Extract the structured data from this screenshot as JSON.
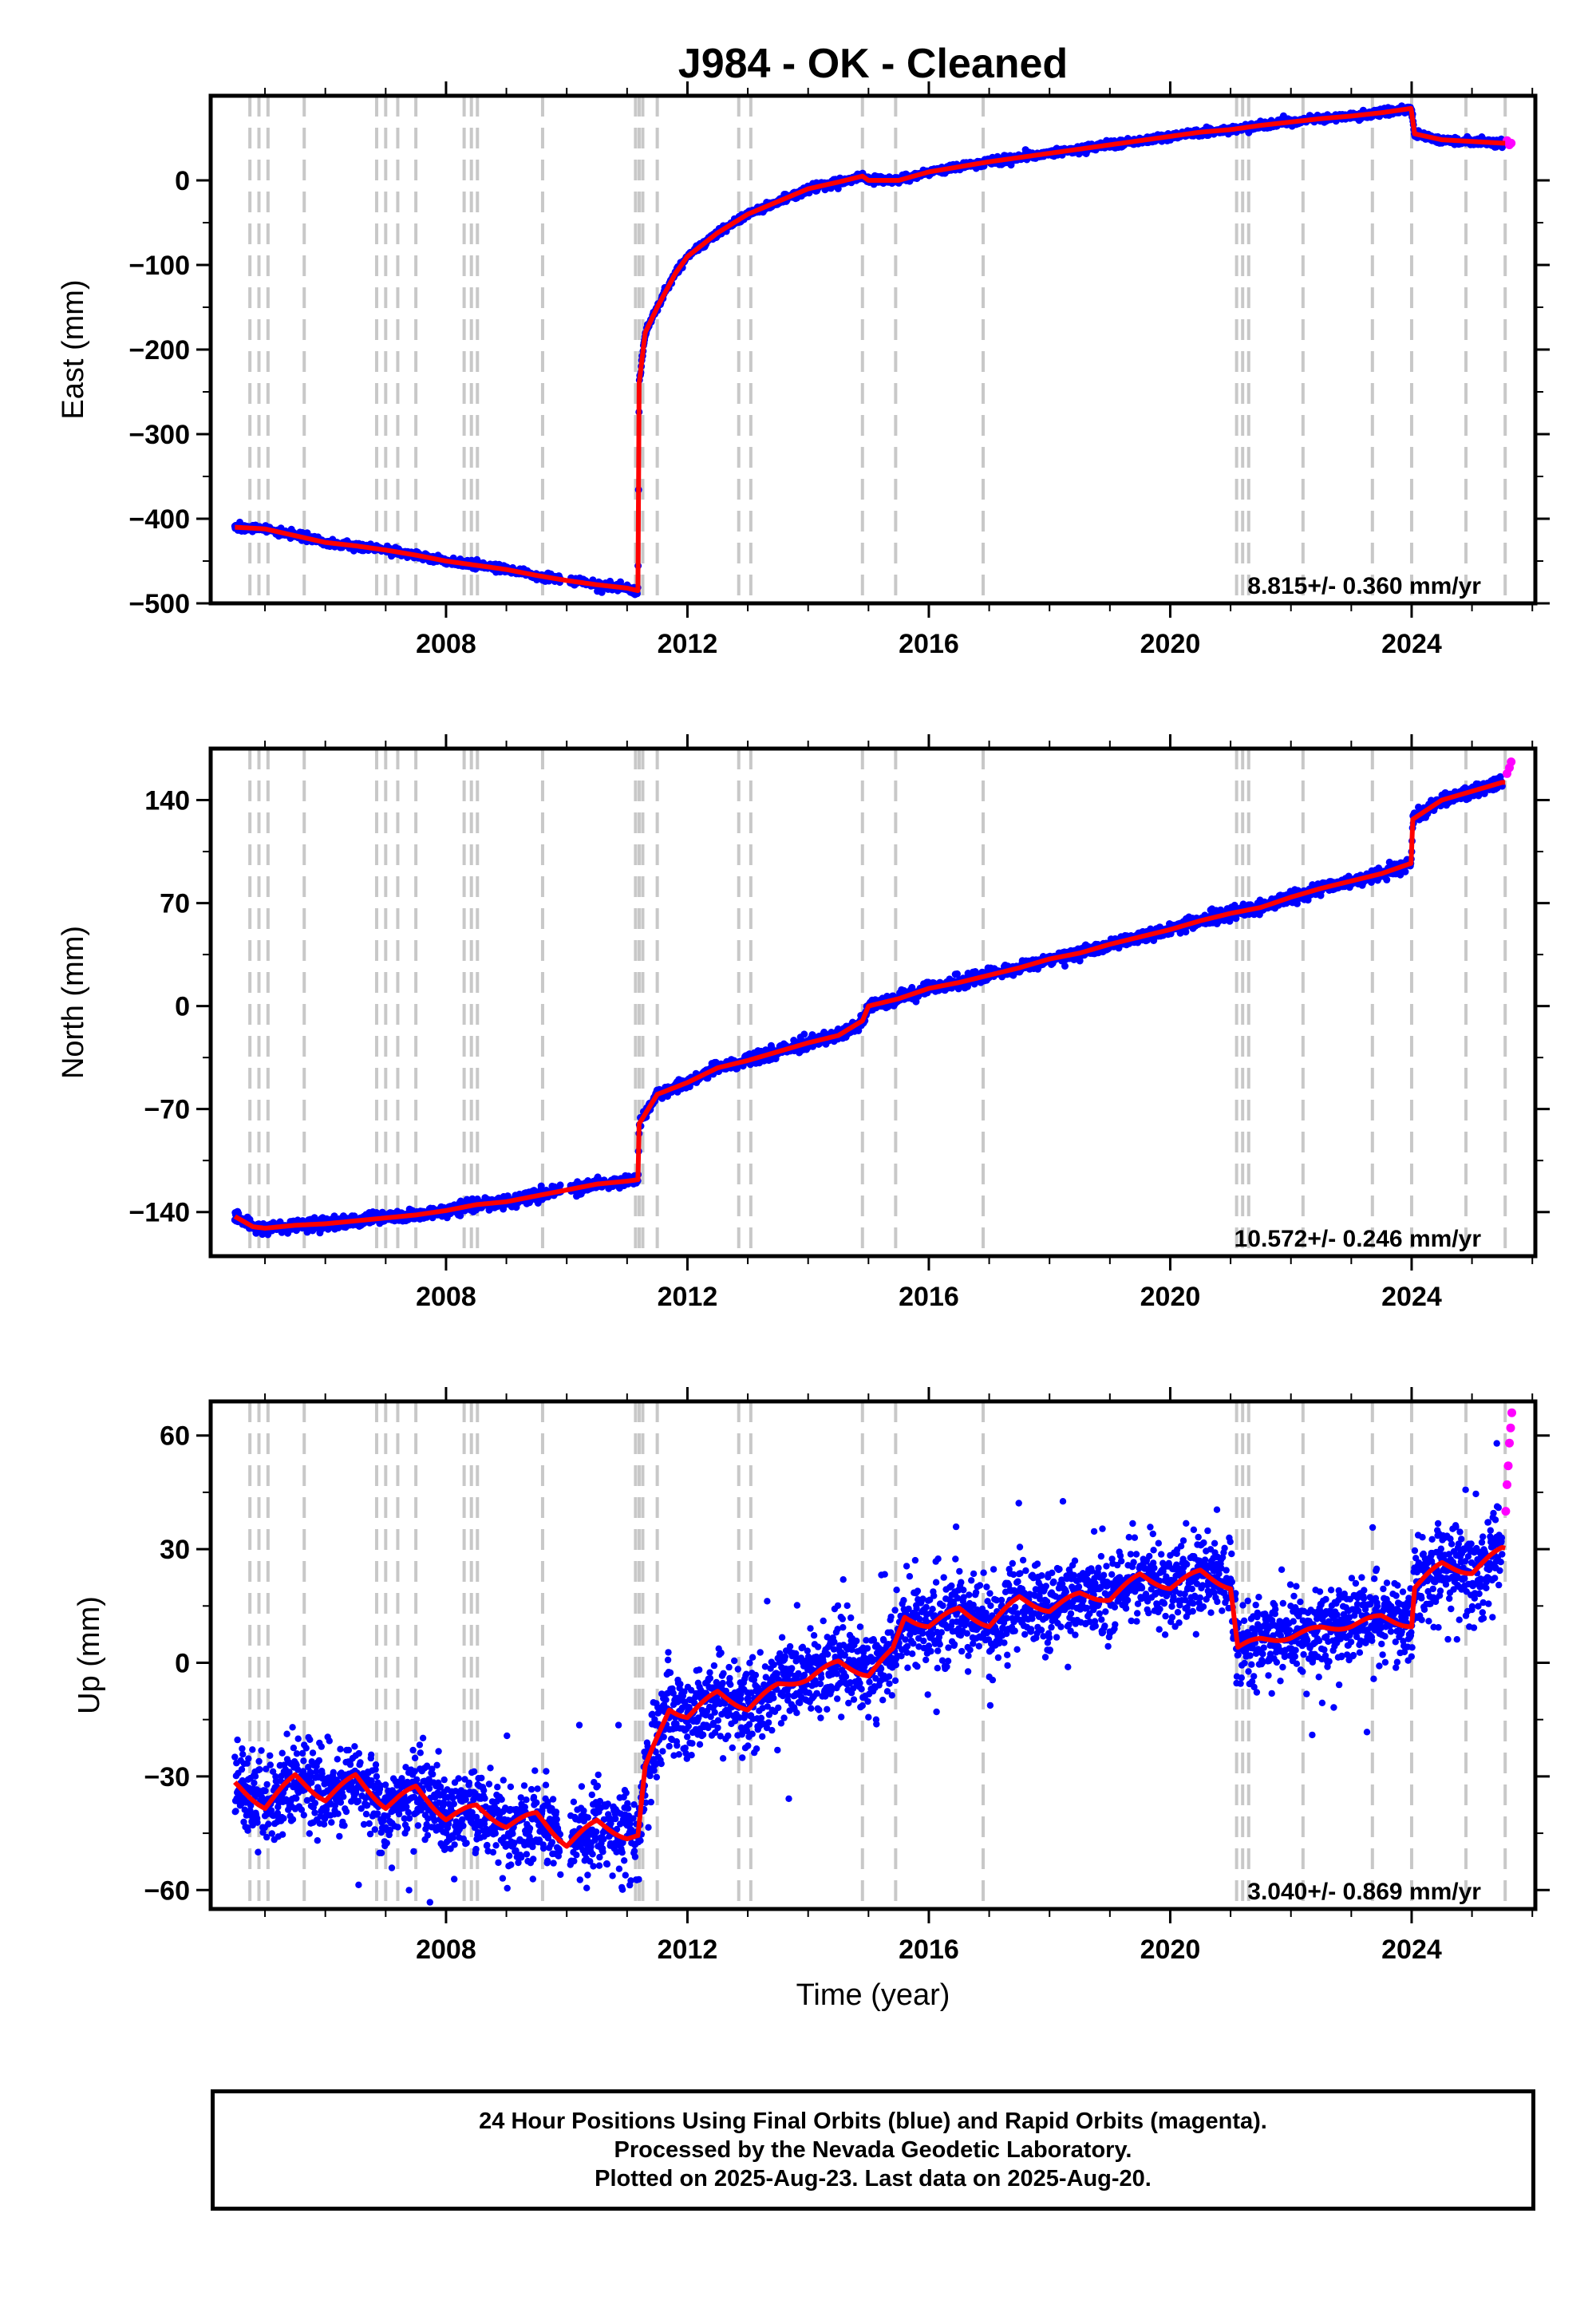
{
  "figure": {
    "title": "J984  - OK - Cleaned",
    "xlabel": "Time (year)"
  },
  "colors": {
    "final_orbits": "#0000ff",
    "rapid_orbits": "#ff00ff",
    "model": "#ff0000",
    "event_lines": "#c8c8c8",
    "frame": "#000000"
  },
  "footer": {
    "line1": "24 Hour Positions Using Final Orbits (blue) and Rapid Orbits (magenta).",
    "line2": "Processed by the Nevada Geodetic Laboratory.",
    "line3": "Plotted on 2025-Aug-23. Last data on 2025-Aug-20."
  },
  "chart_data": [
    {
      "type": "scatter",
      "panel": "east",
      "ylabel": "East (mm)",
      "rate_text": "8.815+/- 0.360 mm/yr",
      "xlim": [
        2004.1,
        2026.05
      ],
      "ylim": [
        -500,
        100
      ],
      "xticks": [
        2008,
        2012,
        2016,
        2020,
        2024
      ],
      "yticks": [
        -500,
        -400,
        -300,
        -200,
        -100,
        0
      ],
      "ytick_labels": [
        "−500",
        "−400",
        "−300",
        "−200",
        "−100",
        "0"
      ],
      "event_lines": [
        2004.75,
        2004.9,
        2005.05,
        2005.65,
        2006.85,
        2007.0,
        2007.2,
        2007.5,
        2008.3,
        2008.42,
        2008.52,
        2009.6,
        2011.14,
        2011.2,
        2011.26,
        2011.5,
        2012.85,
        2013.05,
        2014.9,
        2015.45,
        2016.9,
        2021.1,
        2021.2,
        2021.3,
        2022.2,
        2023.35,
        2024.0,
        2024.9,
        2025.55
      ],
      "series": [
        {
          "name": "Final Orbits",
          "x": [
            2004.5,
            2005.0,
            2005.5,
            2006.0,
            2006.5,
            2007.0,
            2007.5,
            2008.0,
            2008.5,
            2009.0,
            2009.5,
            2010.0,
            2010.5,
            2011.0,
            2011.18,
            2011.2,
            2011.3,
            2011.5,
            2011.8,
            2012.0,
            2012.5,
            2013.0,
            2013.5,
            2014.0,
            2014.5,
            2014.9,
            2015.0,
            2015.5,
            2016.0,
            2016.5,
            2017.0,
            2017.5,
            2018.0,
            2018.5,
            2019.0,
            2019.5,
            2020.0,
            2020.5,
            2021.0,
            2021.5,
            2022.0,
            2022.5,
            2023.0,
            2023.5,
            2023.99,
            2024.05,
            2024.5,
            2025.0,
            2025.5
          ],
          "y": [
            -410,
            -412,
            -420,
            -428,
            -432,
            -437,
            -443,
            -450,
            -455,
            -460,
            -467,
            -473,
            -478,
            -482,
            -485,
            -240,
            -180,
            -150,
            -110,
            -90,
            -62,
            -40,
            -25,
            -10,
            -2,
            5,
            0,
            0,
            10,
            16,
            22,
            27,
            32,
            37,
            42,
            47,
            52,
            57,
            60,
            65,
            69,
            73,
            76,
            80,
            85,
            55,
            48,
            46,
            44
          ]
        },
        {
          "name": "Rapid Orbits",
          "x": [
            2025.58,
            2025.62,
            2025.65
          ],
          "y": [
            47,
            42,
            44
          ]
        }
      ]
    },
    {
      "type": "scatter",
      "panel": "north",
      "ylabel": "North (mm)",
      "rate_text": "10.572+/- 0.246 mm/yr",
      "xlim": [
        2004.1,
        2026.05
      ],
      "ylim": [
        -170,
        175
      ],
      "xticks": [
        2008,
        2012,
        2016,
        2020,
        2024
      ],
      "yticks": [
        -140,
        -70,
        0,
        70,
        140
      ],
      "ytick_labels": [
        "−140",
        "−70",
        "0",
        "70",
        "140"
      ],
      "event_lines": [
        2004.75,
        2004.9,
        2005.05,
        2005.65,
        2006.85,
        2007.0,
        2007.2,
        2007.5,
        2008.3,
        2008.42,
        2008.52,
        2009.6,
        2011.14,
        2011.2,
        2011.26,
        2011.5,
        2012.85,
        2013.05,
        2014.9,
        2015.45,
        2016.9,
        2021.1,
        2021.2,
        2021.3,
        2022.2,
        2023.35,
        2024.0,
        2024.9,
        2025.55
      ],
      "series": [
        {
          "name": "Final Orbits",
          "x": [
            2004.5,
            2004.8,
            2005.0,
            2005.5,
            2006.0,
            2006.5,
            2007.0,
            2007.5,
            2008.0,
            2008.5,
            2009.0,
            2009.5,
            2010.0,
            2010.5,
            2011.0,
            2011.18,
            2011.2,
            2011.5,
            2012.0,
            2012.5,
            2013.0,
            2013.5,
            2014.0,
            2014.5,
            2014.9,
            2015.0,
            2015.5,
            2016.0,
            2016.5,
            2017.0,
            2017.5,
            2018.0,
            2018.5,
            2019.0,
            2019.5,
            2020.0,
            2020.5,
            2021.0,
            2021.5,
            2022.0,
            2022.5,
            2023.0,
            2023.5,
            2023.99,
            2024.02,
            2024.5,
            2025.0,
            2025.5
          ],
          "y": [
            -143,
            -150,
            -151,
            -149,
            -148,
            -146,
            -144,
            -142,
            -139,
            -135,
            -133,
            -129,
            -125,
            -121,
            -119,
            -118,
            -80,
            -60,
            -52,
            -42,
            -37,
            -31,
            -25,
            -20,
            -10,
            0,
            5,
            12,
            16,
            21,
            26,
            32,
            36,
            42,
            47,
            52,
            58,
            63,
            67,
            74,
            80,
            85,
            90,
            97,
            127,
            140,
            146,
            152
          ]
        },
        {
          "name": "Rapid Orbits",
          "x": [
            2025.58,
            2025.62,
            2025.65
          ],
          "y": [
            158,
            162,
            166
          ]
        }
      ]
    },
    {
      "type": "scatter",
      "panel": "up",
      "ylabel": "Up (mm)",
      "rate_text": "3.040+/- 0.869 mm/yr",
      "xlim": [
        2004.1,
        2026.05
      ],
      "ylim": [
        -65,
        69
      ],
      "xticks": [
        2008,
        2012,
        2016,
        2020,
        2024
      ],
      "yticks": [
        -60,
        -30,
        0,
        30,
        60
      ],
      "ytick_labels": [
        "−60",
        "−30",
        "0",
        "30",
        "60"
      ],
      "event_lines": [
        2004.75,
        2004.9,
        2005.05,
        2005.65,
        2006.85,
        2007.0,
        2007.2,
        2007.5,
        2008.3,
        2008.42,
        2008.52,
        2009.6,
        2011.14,
        2011.2,
        2011.26,
        2011.5,
        2012.85,
        2013.05,
        2014.9,
        2015.45,
        2016.9,
        2021.1,
        2021.2,
        2021.3,
        2022.2,
        2023.35,
        2024.0,
        2024.9,
        2025.55
      ],
      "series": [
        {
          "name": "Final Orbits",
          "x": [
            2004.5,
            2005.0,
            2005.5,
            2006.0,
            2006.5,
            2007.0,
            2007.5,
            2008.0,
            2008.5,
            2009.0,
            2009.5,
            2010.0,
            2010.5,
            2011.0,
            2011.18,
            2011.3,
            2011.7,
            2012.0,
            2012.5,
            2013.0,
            2013.5,
            2014.0,
            2014.5,
            2015.0,
            2015.4,
            2015.6,
            2016.0,
            2016.5,
            2017.0,
            2017.5,
            2018.0,
            2018.5,
            2019.0,
            2019.5,
            2020.0,
            2020.5,
            2021.0,
            2021.12,
            2021.5,
            2022.0,
            2022.5,
            2023.0,
            2023.5,
            2024.0,
            2024.05,
            2024.5,
            2025.0,
            2025.5
          ],
          "y": [
            -32,
            -38,
            -30,
            -36,
            -30,
            -38,
            -33,
            -41,
            -38,
            -43,
            -40,
            -48,
            -42,
            -46,
            -46,
            -28,
            -12,
            -14,
            -8,
            -12,
            -6,
            -4,
            0,
            -3,
            3,
            12,
            10,
            14,
            10,
            17,
            14,
            18,
            17,
            23,
            20,
            24,
            20,
            4,
            6,
            7,
            9,
            10,
            12,
            10,
            20,
            26,
            24,
            30
          ]
        },
        {
          "name": "Rapid Orbits",
          "x": [
            2025.56,
            2025.58,
            2025.6,
            2025.62,
            2025.64,
            2025.66
          ],
          "y": [
            40,
            47,
            52,
            58,
            62,
            66
          ]
        }
      ]
    }
  ]
}
